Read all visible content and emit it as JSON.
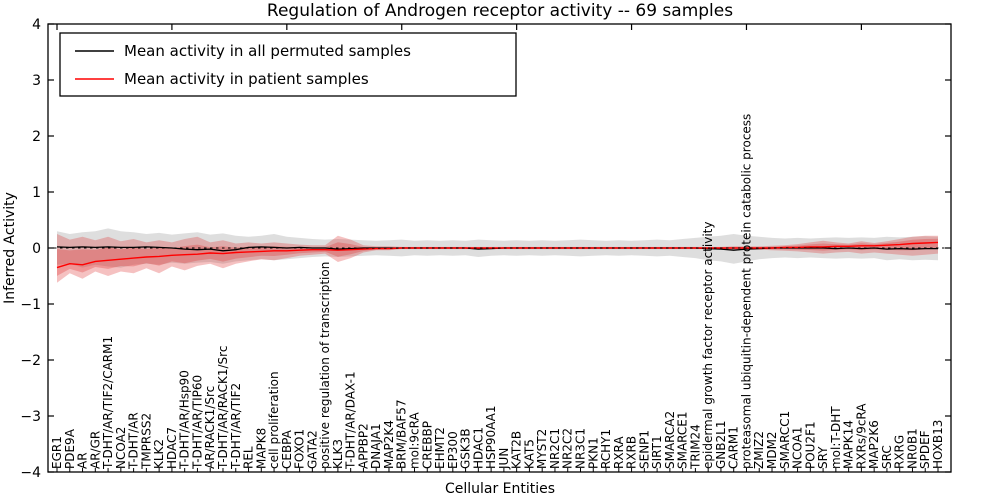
{
  "chart_data": {
    "type": "line",
    "title": "Regulation of Androgen receptor activity -- 69 samples",
    "xlabel": "Cellular Entities",
    "ylabel": "Inferred Activity",
    "ylim": [
      -4,
      4
    ],
    "yticks": [
      4,
      3,
      2,
      1,
      0,
      -1,
      -2,
      -3,
      -4
    ],
    "grid": false,
    "legend_position": "upper-left",
    "colors": {
      "permuted_line": "#000000",
      "patient_line": "#ff0000",
      "permuted_band": "#999999",
      "patient_band": "#dd3333",
      "zero_line": "#000000"
    },
    "x_labels": [
      "EGR1",
      "PDE9A",
      "AR",
      "AR/GR",
      "T-DHT/AR/TIF2/CARM1",
      "NCOA2",
      "T-DHT/AR",
      "TMPRSS2",
      "KLK2",
      "HDAC7",
      "T-DHT/AR/Hsp90",
      "T-DHT/AR/TIP60",
      "AR/RACK1/Src",
      "T-DHT/AR/RACK1/Src",
      "T-DHT/AR/TIF2",
      "REL",
      "MAPK8",
      "cell proliferation",
      "CEBPA",
      "FOXO1",
      "GATA2",
      "positive regulation of transcription",
      "KLK3",
      "T-DHT/AR/DAX-1",
      "APPBP2",
      "DNAJA1",
      "MAP2K4",
      "BRM/BAF57",
      "mol:9cRA",
      "CREBBP",
      "EHMT2",
      "EP300",
      "GSK3B",
      "HDAC1",
      "HSP90AA1",
      "JUN",
      "KAT2B",
      "KAT5",
      "MYST2",
      "NR2C1",
      "NR2C2",
      "NR3C1",
      "PKN1",
      "RCHY1",
      "RXRA",
      "RXRB",
      "SENP1",
      "SIRT1",
      "SMARCA2",
      "SMARCE1",
      "TRIM24",
      "epidermal growth factor receptor activity",
      "GNB2L1",
      "CARM1",
      "proteasomal ubiquitin-dependent protein catabolic process",
      "ZMIZ2",
      "MDM2",
      "SMARCC1",
      "NCOA1",
      "POU2F1",
      "SRY",
      "mol:T-DHT",
      "MAPK14",
      "RXRs/9cRA",
      "MAP2K6",
      "SRC",
      "RXRG",
      "NR0B1",
      "SPDEF",
      "HOXB13"
    ],
    "series": [
      {
        "name": "Mean activity in all permuted samples",
        "color": "#000000",
        "values": [
          0.02,
          0.01,
          0.02,
          0.01,
          0.02,
          0.01,
          0.01,
          0.02,
          0.01,
          0.0,
          -0.02,
          -0.03,
          -0.02,
          -0.05,
          -0.03,
          0.01,
          0.02,
          0.01,
          0.0,
          0.01,
          0.0,
          0.0,
          -0.02,
          -0.01,
          0.0,
          0.0,
          0.0,
          0.0,
          0.0,
          0.0,
          0.0,
          0.0,
          0.0,
          -0.02,
          -0.01,
          0.0,
          0.0,
          0.0,
          0.0,
          0.0,
          0.0,
          0.0,
          0.0,
          0.0,
          0.0,
          0.0,
          0.0,
          0.0,
          0.0,
          0.0,
          0.0,
          -0.01,
          -0.02,
          -0.04,
          -0.02,
          -0.01,
          0.0,
          0.0,
          0.0,
          0.0,
          0.0,
          -0.01,
          0.0,
          -0.01,
          0.0,
          -0.02,
          -0.01,
          -0.02,
          -0.01,
          -0.01
        ]
      },
      {
        "name": "Mean activity in patient samples",
        "color": "#ff0000",
        "values": [
          -0.35,
          -0.28,
          -0.3,
          -0.24,
          -0.22,
          -0.2,
          -0.18,
          -0.16,
          -0.15,
          -0.13,
          -0.12,
          -0.11,
          -0.09,
          -0.1,
          -0.08,
          -0.07,
          -0.06,
          -0.05,
          -0.05,
          -0.04,
          -0.03,
          -0.03,
          -0.04,
          -0.03,
          -0.02,
          -0.01,
          -0.01,
          0.0,
          0.0,
          0.0,
          0.0,
          0.0,
          0.0,
          0.0,
          0.0,
          0.0,
          0.0,
          0.0,
          0.0,
          0.0,
          0.0,
          0.0,
          0.0,
          0.0,
          0.0,
          0.0,
          0.0,
          0.0,
          0.0,
          0.0,
          0.0,
          0.0,
          0.0,
          0.0,
          0.0,
          0.0,
          0.0,
          0.01,
          0.01,
          0.02,
          0.02,
          0.03,
          0.03,
          0.04,
          0.04,
          0.05,
          0.06,
          0.08,
          0.09,
          0.1
        ]
      }
    ],
    "bands": [
      {
        "name": "permuted range",
        "color": "#999999",
        "high": [
          0.3,
          0.25,
          0.28,
          0.3,
          0.35,
          0.3,
          0.28,
          0.25,
          0.27,
          0.24,
          0.26,
          0.28,
          0.24,
          0.26,
          0.22,
          0.2,
          0.22,
          0.25,
          0.2,
          0.18,
          0.16,
          0.15,
          0.16,
          0.15,
          0.14,
          0.13,
          0.14,
          0.15,
          0.13,
          0.14,
          0.13,
          0.14,
          0.13,
          0.15,
          0.14,
          0.13,
          0.14,
          0.13,
          0.14,
          0.13,
          0.14,
          0.15,
          0.14,
          0.13,
          0.14,
          0.13,
          0.14,
          0.15,
          0.14,
          0.16,
          0.18,
          0.2,
          0.22,
          0.25,
          0.22,
          0.2,
          0.18,
          0.17,
          0.18,
          0.17,
          0.18,
          0.19,
          0.18,
          0.19,
          0.18,
          0.2,
          0.19,
          0.2,
          0.21,
          0.2
        ],
        "low": [
          -0.3,
          -0.28,
          -0.35,
          -0.3,
          -0.33,
          -0.35,
          -0.3,
          -0.28,
          -0.3,
          -0.26,
          -0.28,
          -0.26,
          -0.25,
          -0.28,
          -0.24,
          -0.22,
          -0.2,
          -0.22,
          -0.2,
          -0.18,
          -0.16,
          -0.15,
          -0.16,
          -0.15,
          -0.14,
          -0.13,
          -0.14,
          -0.15,
          -0.13,
          -0.14,
          -0.13,
          -0.14,
          -0.13,
          -0.16,
          -0.14,
          -0.13,
          -0.14,
          -0.13,
          -0.14,
          -0.13,
          -0.14,
          -0.15,
          -0.14,
          -0.13,
          -0.14,
          -0.13,
          -0.14,
          -0.15,
          -0.14,
          -0.16,
          -0.18,
          -0.22,
          -0.24,
          -0.28,
          -0.24,
          -0.2,
          -0.18,
          -0.17,
          -0.18,
          -0.17,
          -0.18,
          -0.19,
          -0.18,
          -0.19,
          -0.18,
          -0.22,
          -0.2,
          -0.22,
          -0.21,
          -0.22
        ]
      },
      {
        "name": "patient range",
        "color": "#dd3333",
        "high": [
          0.25,
          0.15,
          0.2,
          0.14,
          0.2,
          0.12,
          0.16,
          0.1,
          0.14,
          0.1,
          0.16,
          0.2,
          0.1,
          0.14,
          0.08,
          0.1,
          0.08,
          0.1,
          0.08,
          0.06,
          0.05,
          0.05,
          0.22,
          0.15,
          0.05,
          0.03,
          0.03,
          0.02,
          0.02,
          0.02,
          0.02,
          0.02,
          0.02,
          0.02,
          0.02,
          0.02,
          0.02,
          0.02,
          0.02,
          0.02,
          0.02,
          0.02,
          0.02,
          0.02,
          0.02,
          0.02,
          0.02,
          0.02,
          0.02,
          0.02,
          0.02,
          0.02,
          0.02,
          0.03,
          0.03,
          0.03,
          0.04,
          0.05,
          0.07,
          0.1,
          0.13,
          0.1,
          0.08,
          0.12,
          0.09,
          0.12,
          0.16,
          0.2,
          0.22,
          0.22
        ],
        "low": [
          -0.62,
          -0.45,
          -0.55,
          -0.42,
          -0.5,
          -0.42,
          -0.45,
          -0.36,
          -0.45,
          -0.33,
          -0.4,
          -0.32,
          -0.28,
          -0.36,
          -0.28,
          -0.24,
          -0.2,
          -0.22,
          -0.18,
          -0.14,
          -0.12,
          -0.1,
          -0.25,
          -0.18,
          -0.08,
          -0.04,
          -0.04,
          -0.02,
          -0.02,
          -0.02,
          -0.02,
          -0.02,
          -0.02,
          -0.02,
          -0.02,
          -0.02,
          -0.02,
          -0.02,
          -0.02,
          -0.02,
          -0.02,
          -0.02,
          -0.02,
          -0.02,
          -0.02,
          -0.02,
          -0.02,
          -0.02,
          -0.02,
          -0.02,
          -0.02,
          -0.02,
          -0.02,
          -0.03,
          -0.03,
          -0.03,
          -0.04,
          -0.05,
          -0.06,
          -0.08,
          -0.1,
          -0.08,
          -0.07,
          -0.1,
          -0.08,
          -0.1,
          -0.12,
          -0.14,
          -0.12,
          -0.1
        ]
      }
    ],
    "legend": [
      {
        "label": "Mean activity in all permuted samples",
        "color": "#000000"
      },
      {
        "label": "Mean activity in patient samples",
        "color": "#ff0000"
      }
    ]
  }
}
